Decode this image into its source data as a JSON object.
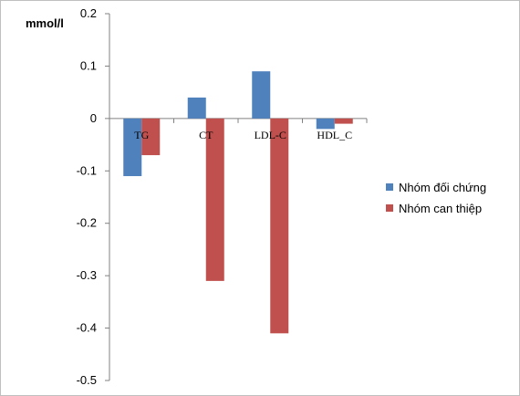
{
  "chart_data": {
    "type": "bar",
    "categories": [
      "TG",
      "CT",
      "LDL-C",
      "HDL_C"
    ],
    "series": [
      {
        "name": "Nhóm đối chứng",
        "values": [
          -0.11,
          0.04,
          0.09,
          -0.02
        ],
        "color": "#4F81BD"
      },
      {
        "name": "Nhóm can thiệp",
        "values": [
          -0.07,
          -0.31,
          -0.41,
          -0.01
        ],
        "color": "#C0504D"
      }
    ],
    "ylabel": "mmol/l",
    "xlabel": "",
    "title": "",
    "ylim": [
      -0.5,
      0.2
    ],
    "yticks": [
      0.2,
      0.1,
      0,
      -0.1,
      -0.2,
      -0.3,
      -0.4,
      -0.5
    ],
    "ytick_labels": [
      "0.2",
      "0.1",
      "0",
      "-0.1",
      "-0.2",
      "-0.3",
      "-0.4",
      "-0.5"
    ],
    "grid": false,
    "legend_position": "right"
  }
}
